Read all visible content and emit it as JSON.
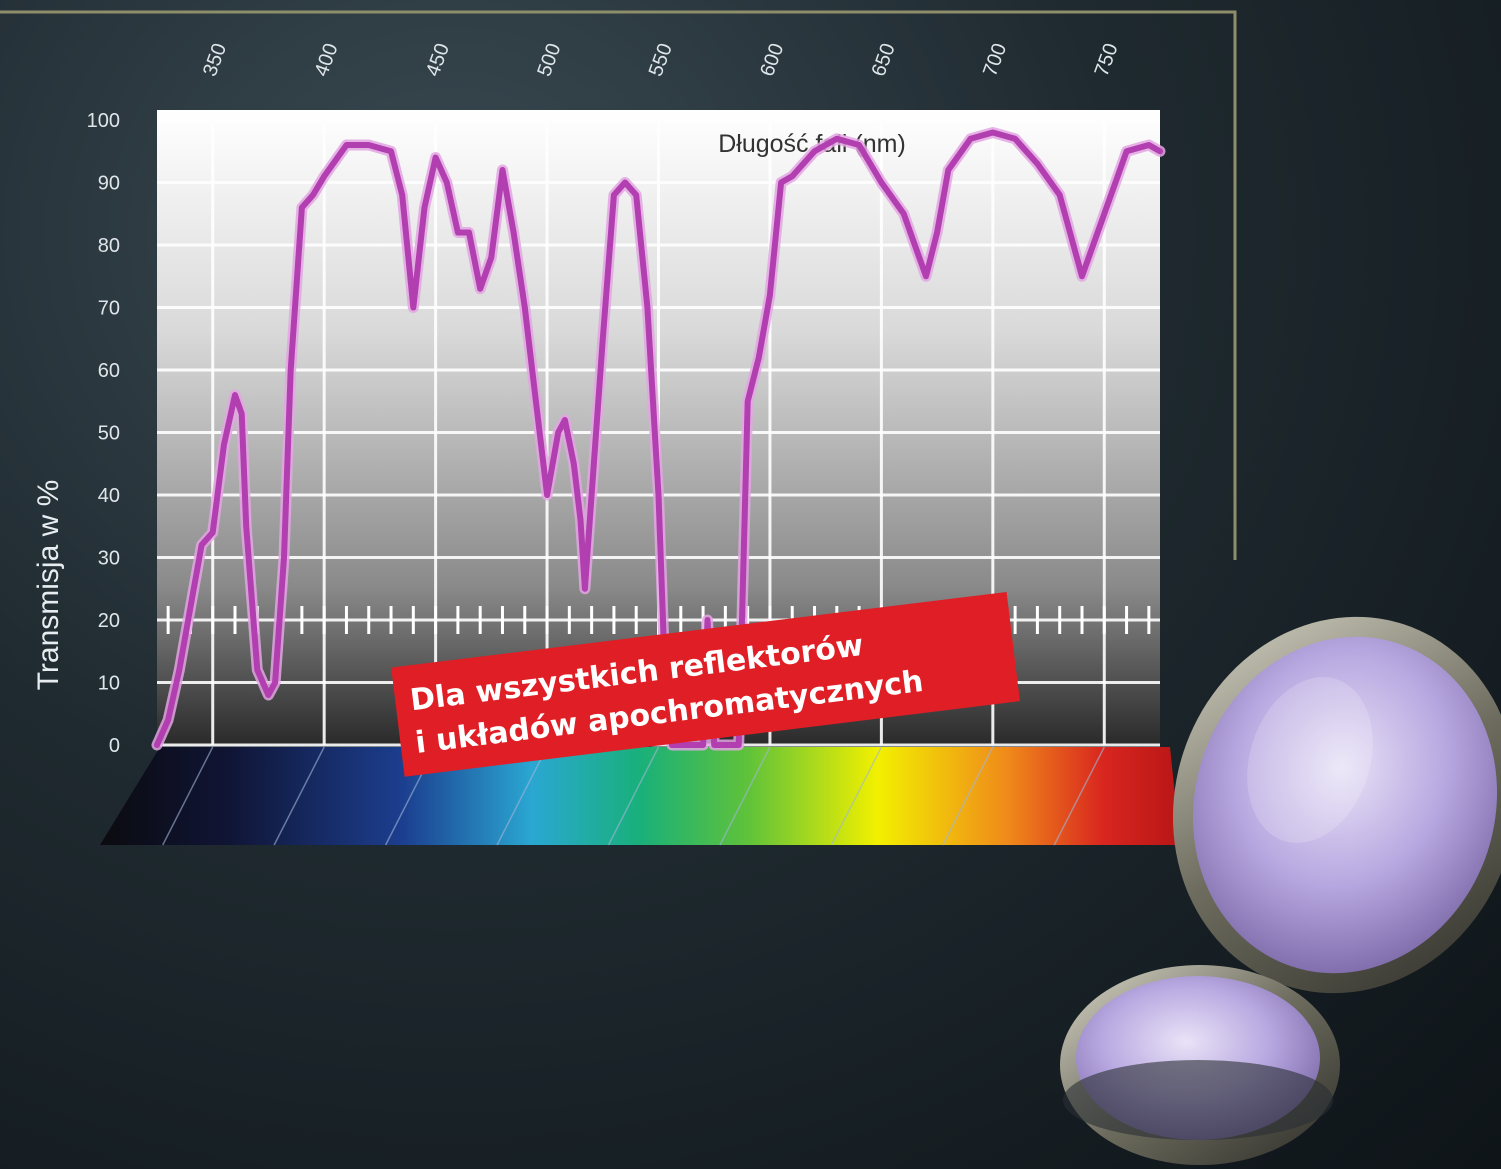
{
  "chart_data": {
    "type": "line",
    "title": "Długość fali (nm)",
    "xlabel": "",
    "ylabel": "Transmisja w %",
    "ylim": [
      0,
      100
    ],
    "yticks": [
      "100",
      "90",
      "80",
      "70",
      "60",
      "50",
      "40",
      "30",
      "20",
      "10",
      "0"
    ],
    "xticks": [
      "350",
      "400",
      "450",
      "500",
      "550",
      "600",
      "650",
      "700",
      "750"
    ],
    "xlim": [
      325,
      775
    ],
    "grid": true,
    "series": [
      {
        "color": "#b23fb0",
        "x": [
          325,
          330,
          335,
          340,
          345,
          350,
          355,
          360,
          363,
          365,
          370,
          375,
          378,
          382,
          385,
          390,
          395,
          400,
          410,
          420,
          430,
          435,
          440,
          445,
          450,
          455,
          460,
          465,
          470,
          475,
          480,
          485,
          490,
          495,
          500,
          505,
          508,
          512,
          515,
          517,
          520,
          525,
          530,
          535,
          540,
          545,
          550,
          553,
          556,
          560,
          565,
          570,
          572,
          575,
          578,
          582,
          586,
          590,
          595,
          600,
          605,
          610,
          620,
          630,
          640,
          650,
          660,
          665,
          670,
          675,
          680,
          690,
          700,
          710,
          720,
          730,
          740,
          750,
          760,
          770,
          775
        ],
        "y": [
          0,
          4,
          12,
          22,
          32,
          34,
          48,
          56,
          53,
          35,
          12,
          8,
          10,
          30,
          60,
          86,
          88,
          91,
          96,
          96,
          95,
          88,
          70,
          86,
          94,
          90,
          82,
          82,
          73,
          78,
          92,
          82,
          70,
          55,
          40,
          50,
          52,
          45,
          36,
          25,
          40,
          65,
          88,
          90,
          88,
          70,
          40,
          10,
          0,
          0,
          0,
          0,
          20,
          0,
          0,
          0,
          0,
          55,
          62,
          72,
          90,
          91,
          95,
          97,
          96,
          90,
          85,
          80,
          75,
          82,
          92,
          97,
          98,
          97,
          93,
          88,
          75,
          85,
          95,
          96,
          95
        ]
      }
    ],
    "annotation": [
      "Dla wszystkich reflektorów",
      "i układów apochromatycznych"
    ]
  },
  "colors": {
    "accent": "#b23fb0",
    "banner": "#e01e25",
    "frame": "#8e8f6a"
  },
  "spectrum_labels": []
}
